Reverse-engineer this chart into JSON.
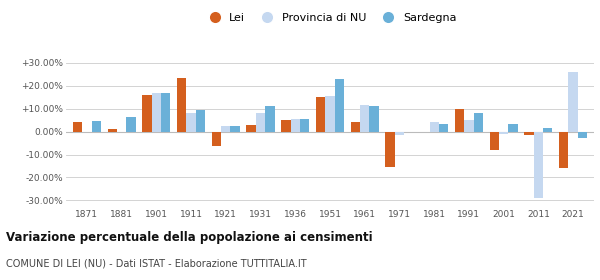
{
  "years": [
    1871,
    1881,
    1901,
    1911,
    1921,
    1931,
    1936,
    1951,
    1961,
    1971,
    1981,
    1991,
    2001,
    2011,
    2021
  ],
  "lei": [
    4.0,
    1.0,
    16.0,
    23.5,
    -6.5,
    3.0,
    5.0,
    15.0,
    4.0,
    -15.5,
    null,
    10.0,
    -8.0,
    -1.5,
    -16.0
  ],
  "provincia": [
    null,
    null,
    17.0,
    8.0,
    2.5,
    8.0,
    5.5,
    15.5,
    11.5,
    -1.5,
    4.0,
    5.0,
    -1.0,
    -29.0,
    26.0
  ],
  "sardegna": [
    4.5,
    6.5,
    17.0,
    9.5,
    2.5,
    11.0,
    5.5,
    23.0,
    11.0,
    null,
    3.5,
    8.0,
    3.5,
    1.5,
    -3.0
  ],
  "lei_color": "#d45f1e",
  "provincia_color": "#c5d8f0",
  "sardegna_color": "#6ab0d8",
  "title": "Variazione percentuale della popolazione ai censimenti",
  "subtitle": "COMUNE DI LEI (NU) - Dati ISTAT - Elaborazione TUTTITALIA.IT",
  "ylim": [
    -33,
    33
  ],
  "yticks": [
    -30,
    -20,
    -10,
    0,
    10,
    20,
    30
  ],
  "ytick_labels": [
    "-30.00%",
    "-20.00%",
    "-10.00%",
    "0.00%",
    "+10.00%",
    "+20.00%",
    "+30.00%"
  ],
  "background_color": "#ffffff",
  "grid_color": "#cccccc",
  "bar_width": 0.27
}
